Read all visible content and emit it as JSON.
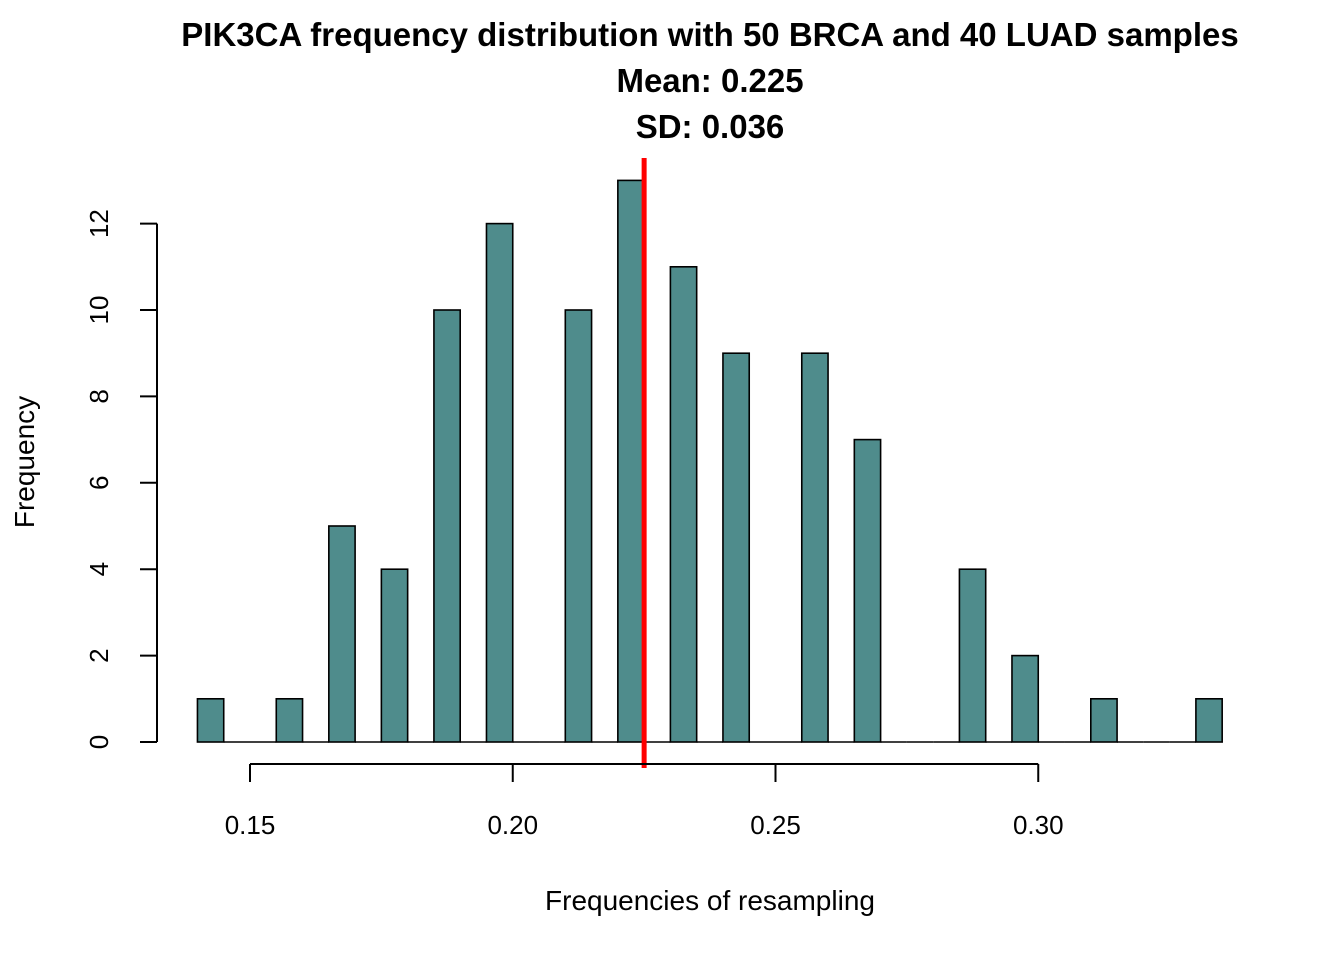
{
  "colors": {
    "bar_fill": "#4f8c8c",
    "bar_stroke": "#000000",
    "mean_line": "#ff0000",
    "background": "#ffffff"
  },
  "chart_data": {
    "type": "bar",
    "title_lines": [
      "PIK3CA frequency distribution with 50 BRCA and 40 LUAD samples",
      "Mean: 0.225",
      "SD: 0.036"
    ],
    "xlabel": "Frequencies of resampling",
    "ylabel": "Frequency",
    "xlim": [
      0.135,
      0.337
    ],
    "ylim": [
      0,
      13
    ],
    "x_ticks": [
      0.15,
      0.2,
      0.25,
      0.3
    ],
    "x_tick_labels": [
      "0.15",
      "0.20",
      "0.25",
      "0.30"
    ],
    "y_ticks": [
      0,
      2,
      4,
      6,
      8,
      10,
      12
    ],
    "y_tick_labels": [
      "0",
      "2",
      "4",
      "6",
      "8",
      "10",
      "12"
    ],
    "bar_width": 0.005,
    "x": [
      0.1425,
      0.1475,
      0.1525,
      0.1575,
      0.1625,
      0.1675,
      0.1725,
      0.1775,
      0.1825,
      0.1875,
      0.1925,
      0.1975,
      0.2025,
      0.2075,
      0.2125,
      0.2175,
      0.2225,
      0.2275,
      0.2325,
      0.2375,
      0.2425,
      0.2475,
      0.2525,
      0.2575,
      0.2625,
      0.2675,
      0.2725,
      0.2775,
      0.2825,
      0.2875,
      0.2925,
      0.2975,
      0.3025,
      0.3075,
      0.3125,
      0.3175,
      0.3225,
      0.3275,
      0.3325
    ],
    "values": [
      1,
      0,
      0,
      1,
      0,
      5,
      0,
      4,
      0,
      10,
      0,
      12,
      0,
      0,
      10,
      0,
      13,
      0,
      11,
      0,
      9,
      0,
      0,
      9,
      0,
      7,
      0,
      0,
      0,
      4,
      0,
      2,
      0,
      0,
      1,
      0,
      0,
      0,
      1
    ],
    "mean_line_x": 0.225,
    "grid": false,
    "legend": "none"
  }
}
